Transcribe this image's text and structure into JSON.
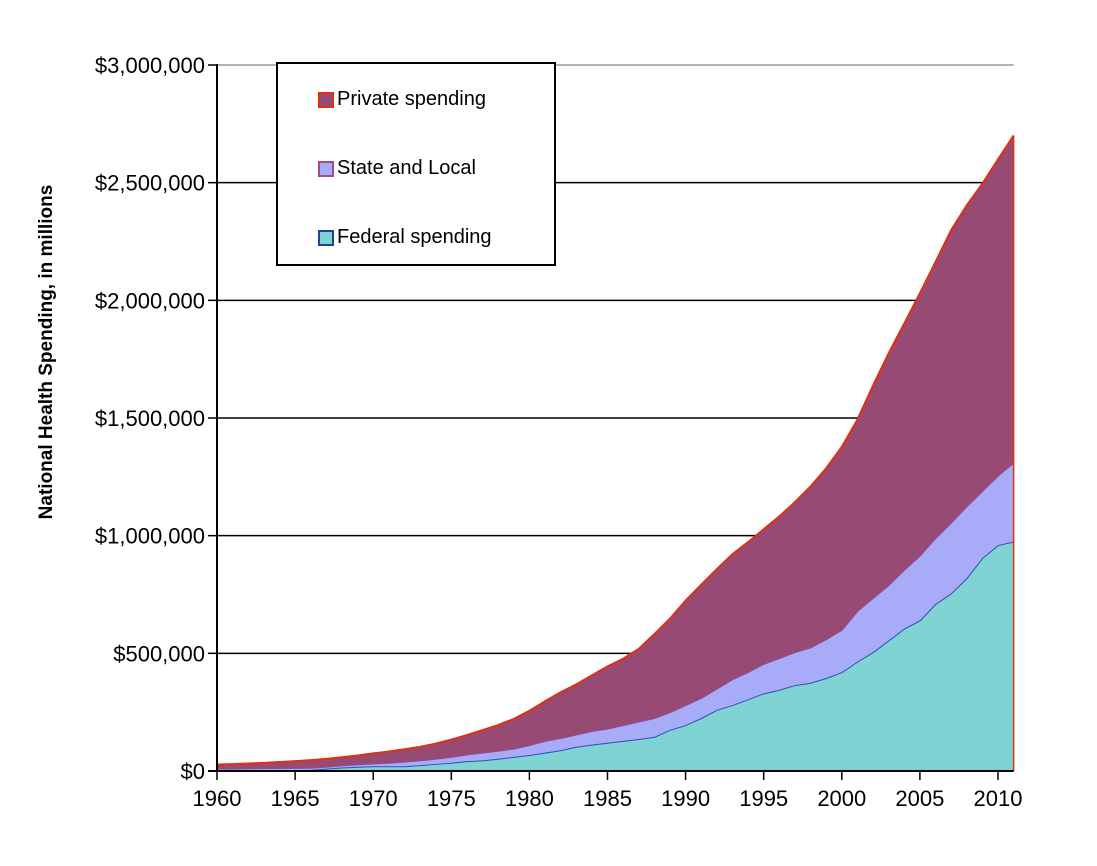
{
  "chart_data": {
    "type": "area",
    "stacked": true,
    "title": "",
    "xlabel": "",
    "ylabel": "National Health Spending, in millions",
    "xlim": [
      1960,
      2011
    ],
    "ylim": [
      0,
      3000000
    ],
    "x_ticks": [
      "1960",
      "1965",
      "1970",
      "1975",
      "1980",
      "1985",
      "1990",
      "1995",
      "2000",
      "2005",
      "2010"
    ],
    "y_ticks": [
      "$0",
      "$500,000",
      "$1,000,000",
      "$1,500,000",
      "$2,000,000",
      "$2,500,000",
      "$3,000,000"
    ],
    "grid": "horizontal",
    "legend_placement": "top-left",
    "x": [
      1960,
      1961,
      1962,
      1963,
      1964,
      1965,
      1966,
      1967,
      1968,
      1969,
      1970,
      1971,
      1972,
      1973,
      1974,
      1975,
      1976,
      1977,
      1978,
      1979,
      1980,
      1981,
      1982,
      1983,
      1984,
      1985,
      1986,
      1987,
      1988,
      1989,
      1990,
      1991,
      1992,
      1993,
      1994,
      1995,
      1996,
      1997,
      1998,
      1999,
      2000,
      2001,
      2002,
      2003,
      2004,
      2005,
      2006,
      2007,
      2008,
      2009,
      2010,
      2011
    ],
    "series": [
      {
        "name": "Federal spending",
        "color": "#7fd3d3",
        "line": "#3050b0",
        "values": [
          3000,
          3000,
          3000,
          3000,
          3000,
          3000,
          5000,
          10000,
          15000,
          18000,
          20000,
          20000,
          20000,
          25000,
          30000,
          35000,
          42000,
          45000,
          52000,
          60000,
          68000,
          78000,
          88000,
          103000,
          112000,
          120000,
          128000,
          136000,
          145000,
          175000,
          195000,
          225000,
          260000,
          280000,
          305000,
          330000,
          345000,
          365000,
          375000,
          395000,
          420000,
          465000,
          505000,
          555000,
          605000,
          640000,
          710000,
          755000,
          820000,
          905000,
          960000,
          975000
        ]
      },
      {
        "name": "State and Local",
        "color": "#a8acf8",
        "line": "#8c4f9a",
        "values": [
          7000,
          7000,
          8000,
          9000,
          9000,
          10000,
          9000,
          8000,
          9000,
          10000,
          12000,
          15000,
          20000,
          20000,
          22000,
          25000,
          28000,
          33000,
          34000,
          35000,
          42000,
          50000,
          52000,
          52000,
          58000,
          60000,
          67000,
          74000,
          80000,
          75000,
          85000,
          85000,
          90000,
          110000,
          115000,
          125000,
          135000,
          140000,
          150000,
          165000,
          180000,
          215000,
          230000,
          235000,
          250000,
          275000,
          280000,
          300000,
          305000,
          285000,
          295000,
          335000
        ]
      },
      {
        "name": "Private spending",
        "color": "#964a74",
        "line": "#e03010",
        "values": [
          17400,
          19100,
          20800,
          22600,
          26400,
          28900,
          32100,
          33600,
          34500,
          38000,
          42900,
          47700,
          52700,
          57800,
          64500,
          73300,
          82700,
          95900,
          109300,
          126500,
          145800,
          168700,
          194700,
          213000,
          236500,
          264600,
          281900,
          309100,
          356900,
          397500,
          444300,
          481500,
          507900,
          531500,
          552700,
          572500,
          601800,
          637600,
          683900,
          726500,
          777200,
          813300,
          903000,
          985400,
          1046600,
          1115500,
          1173300,
          1243300,
          1278900,
          1305900,
          1344000,
          1390700
        ]
      }
    ]
  },
  "legend": {
    "items": [
      {
        "label": "Private spending",
        "fill": "#964a74",
        "border": "#e03010"
      },
      {
        "label": "State and Local",
        "fill": "#a8acf8",
        "border": "#a05080"
      },
      {
        "label": "Federal spending",
        "fill": "#7fd3d3",
        "border": "#2040a0"
      }
    ]
  }
}
